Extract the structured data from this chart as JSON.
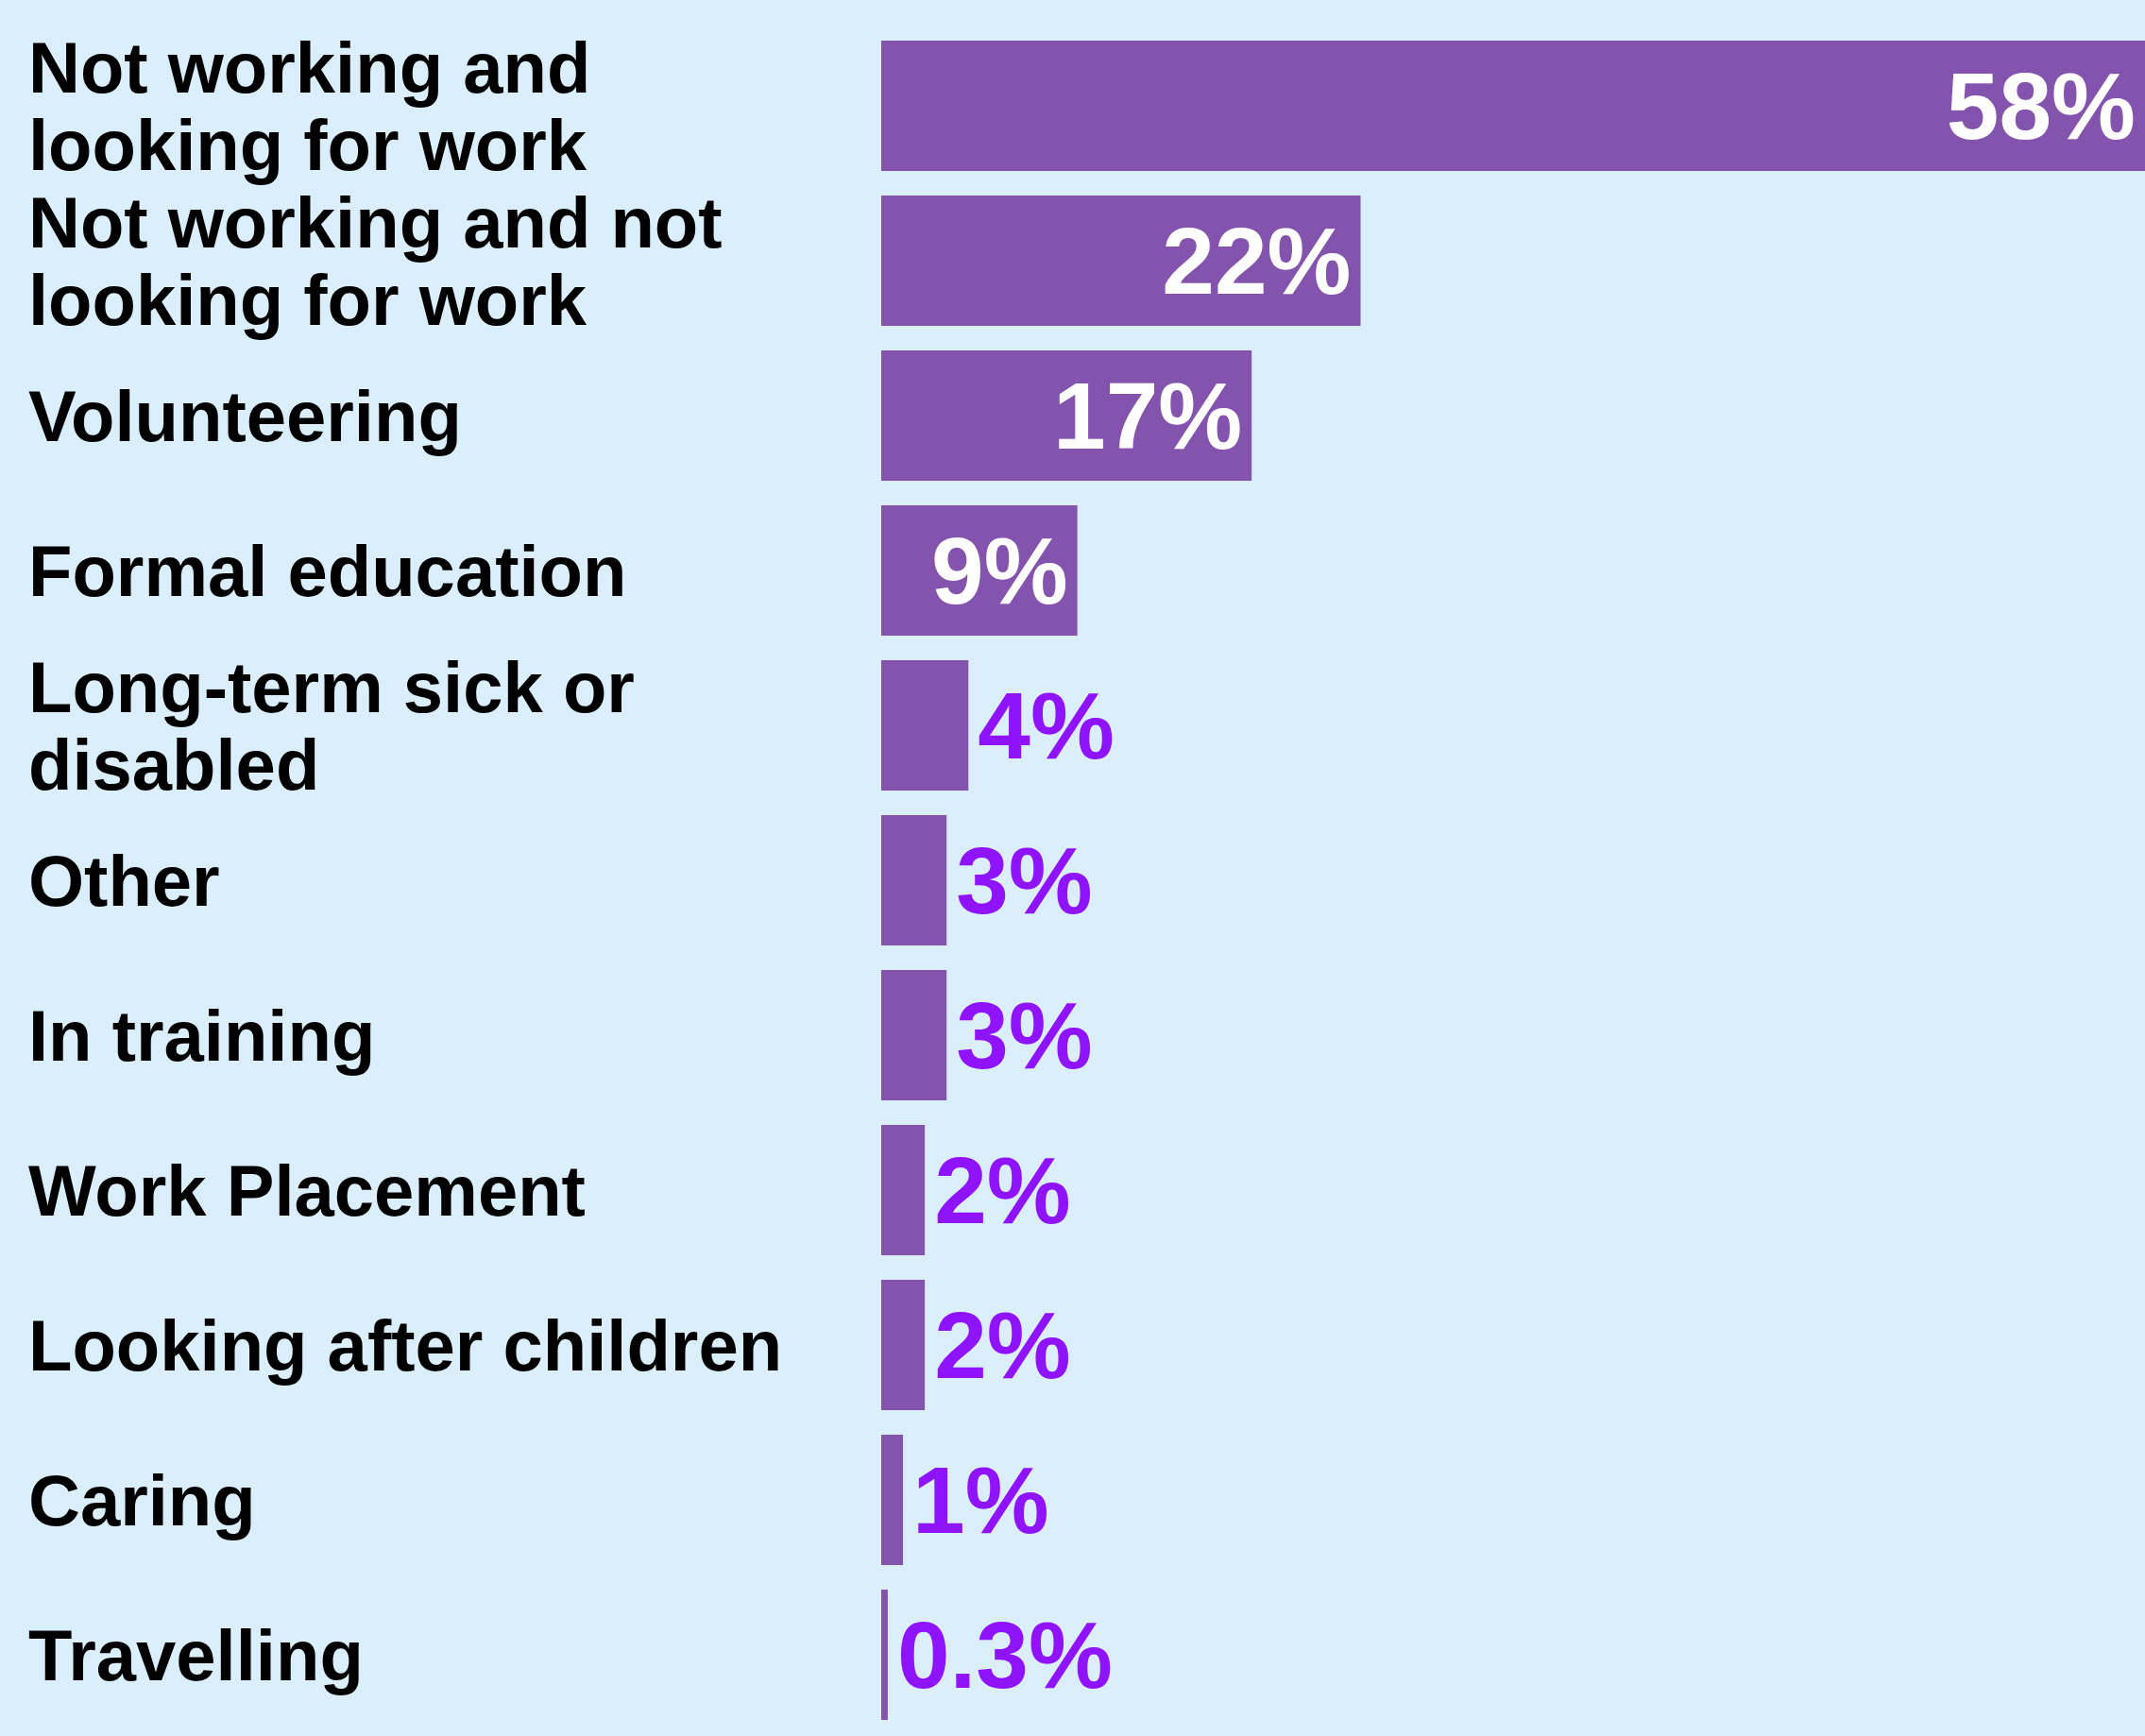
{
  "chart_data": {
    "type": "bar",
    "orientation": "horizontal",
    "categories": [
      "Not working and looking for work",
      "Not working and not looking for work",
      "Volunteering",
      "Formal education",
      "Long-term sick or disabled",
      "Other",
      "In training",
      "Work Placement",
      "Looking after children",
      "Caring",
      "Travelling"
    ],
    "values": [
      58,
      22,
      17,
      9,
      4,
      3,
      3,
      2,
      2,
      1,
      0.3
    ],
    "value_labels": [
      "58%",
      "22%",
      "17%",
      "9%",
      "4%",
      "3%",
      "3%",
      "2%",
      "2%",
      "1%",
      "0.3%"
    ],
    "color": "#8353ad"
  }
}
